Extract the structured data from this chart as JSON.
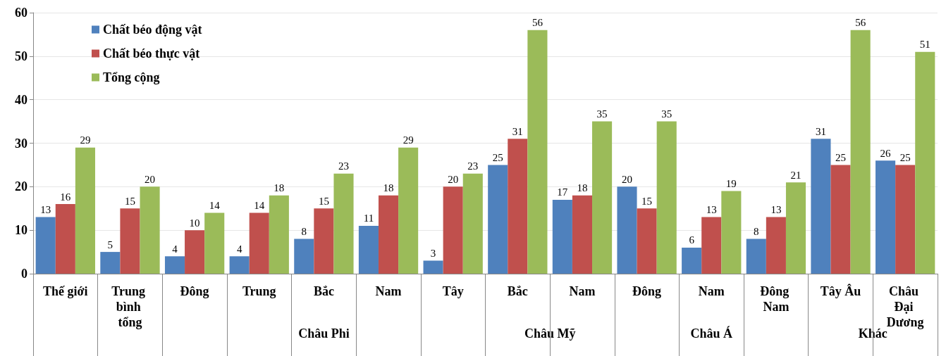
{
  "chart_data": {
    "type": "bar",
    "categories": [
      "Thế giới",
      "Trung bình tổng",
      "Đông",
      "Trung",
      "Bắc",
      "Nam",
      "Tây",
      "Bắc",
      "Nam",
      "Đông",
      "Nam",
      "Đông Nam",
      "Tây Âu",
      "Châu Đại Dương"
    ],
    "series": [
      {
        "name": "Chất béo động vật",
        "color": "#4f81bd",
        "values": [
          13,
          5,
          4,
          4,
          8,
          11,
          3,
          25,
          17,
          20,
          6,
          8,
          31,
          26
        ]
      },
      {
        "name": "Chất béo thực vật",
        "color": "#c0504d",
        "values": [
          16,
          15,
          10,
          14,
          15,
          18,
          20,
          31,
          18,
          15,
          13,
          13,
          25,
          25
        ]
      },
      {
        "name": "Tổng cộng",
        "color": "#9bbb59",
        "values": [
          29,
          20,
          14,
          18,
          23,
          29,
          23,
          56,
          35,
          35,
          19,
          21,
          56,
          51
        ]
      }
    ],
    "annotations": [
      "Châu Phi",
      "Châu Mỹ",
      "Châu Á",
      "Khác"
    ],
    "ylim": [
      0,
      60
    ],
    "yticks": [
      0,
      10,
      20,
      30,
      40,
      50,
      60
    ],
    "grid": "y",
    "legend": "top left",
    "data_labels": true
  }
}
